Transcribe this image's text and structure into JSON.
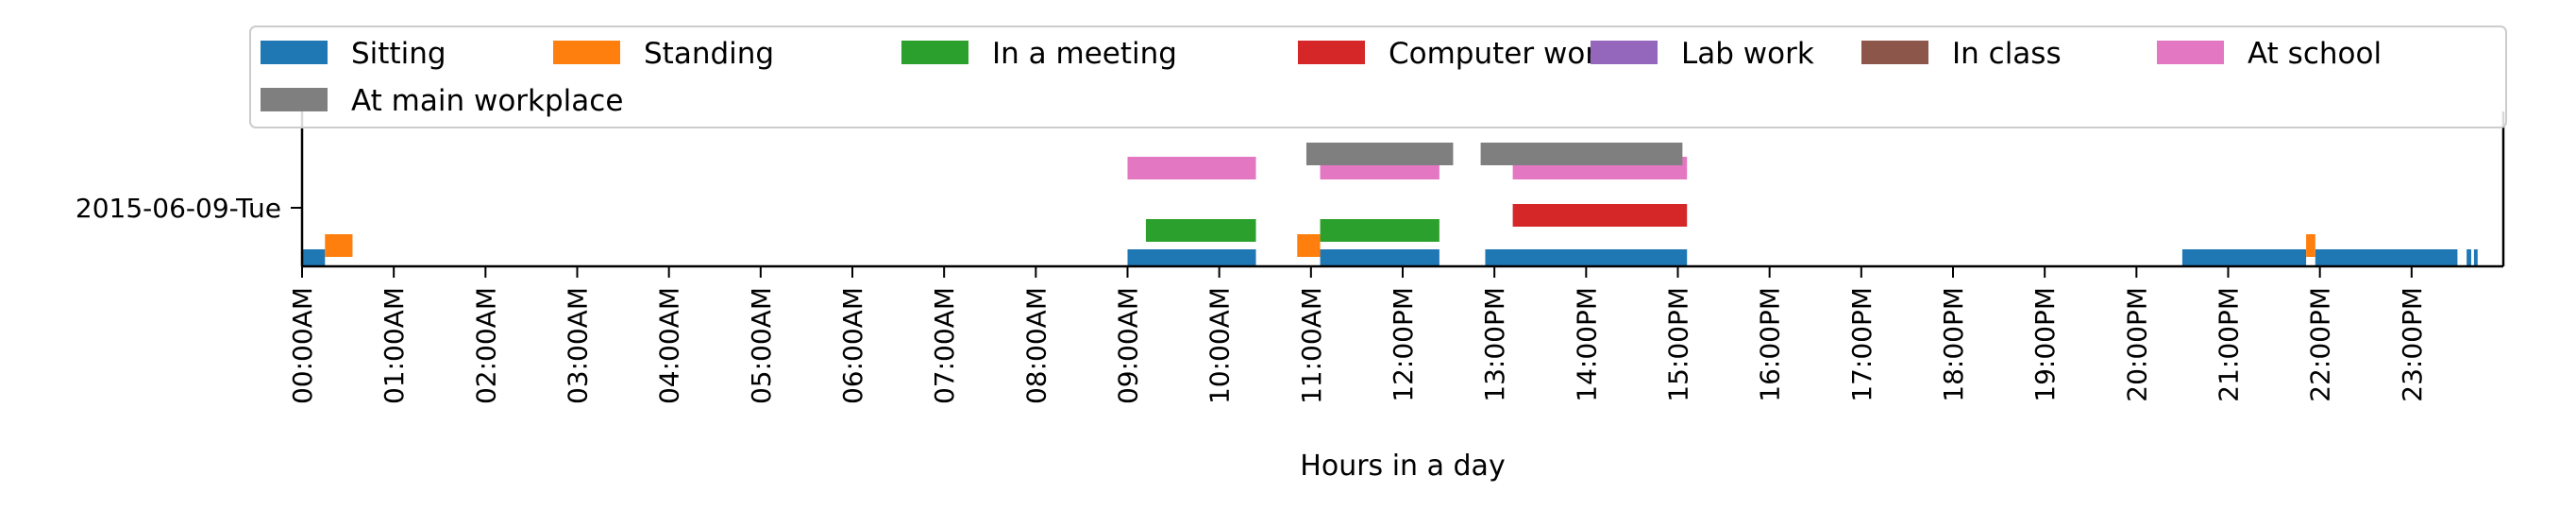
{
  "chart_data": {
    "type": "timeline",
    "xlabel": "Hours in a day",
    "xlim": [
      0,
      24
    ],
    "y_category": "2015-06-09-Tue",
    "x_ticks": [
      "00:00AM",
      "01:00AM",
      "02:00AM",
      "03:00AM",
      "04:00AM",
      "05:00AM",
      "06:00AM",
      "07:00AM",
      "08:00AM",
      "09:00AM",
      "10:00AM",
      "11:00AM",
      "12:00PM",
      "13:00PM",
      "14:00PM",
      "15:00PM",
      "16:00PM",
      "17:00PM",
      "18:00PM",
      "19:00PM",
      "20:00PM",
      "21:00PM",
      "22:00PM",
      "23:00PM"
    ],
    "legend_position": "top",
    "series": [
      {
        "name": "Sitting",
        "color": "#1f77b4",
        "lane": 0,
        "intervals": [
          [
            0.0,
            0.25
          ],
          [
            9.0,
            10.4
          ],
          [
            11.1,
            12.4
          ],
          [
            12.9,
            15.1
          ],
          [
            20.5,
            21.85
          ],
          [
            21.95,
            23.5
          ],
          [
            23.6,
            23.65
          ],
          [
            23.68,
            23.72
          ]
        ]
      },
      {
        "name": "Standing",
        "color": "#ff7f0e",
        "lane": 0.5,
        "intervals": [
          [
            0.25,
            0.55
          ],
          [
            10.85,
            11.1
          ],
          [
            21.85,
            21.95
          ]
        ]
      },
      {
        "name": "In a meeting",
        "color": "#2ca02c",
        "lane": 1,
        "intervals": [
          [
            9.2,
            10.4
          ],
          [
            11.1,
            12.4
          ]
        ]
      },
      {
        "name": "Computer work",
        "color": "#d62728",
        "lane": 2,
        "intervals": [
          [
            13.2,
            15.1
          ]
        ]
      },
      {
        "name": "Lab work",
        "color": "#9467bd",
        "lane": 3,
        "intervals": []
      },
      {
        "name": "In class",
        "color": "#8c564b",
        "lane": 4,
        "intervals": []
      },
      {
        "name": "At school",
        "color": "#e377c2",
        "lane": 5,
        "intervals": [
          [
            9.0,
            10.4
          ],
          [
            11.1,
            12.4
          ],
          [
            13.2,
            15.1
          ]
        ]
      },
      {
        "name": "At main workplace",
        "color": "#7f7f7f",
        "lane": 6,
        "intervals": [
          [
            10.95,
            12.55
          ],
          [
            12.85,
            15.05
          ]
        ]
      }
    ]
  }
}
